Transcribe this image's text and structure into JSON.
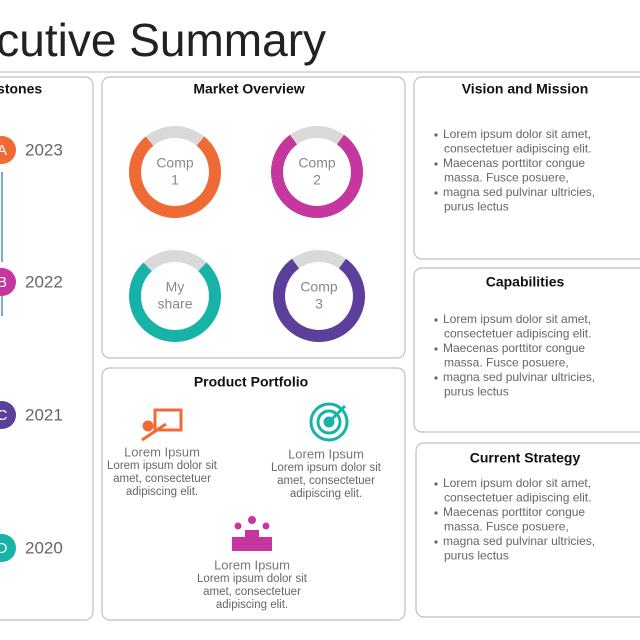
{
  "header": {
    "title": "Executive Summary"
  },
  "milestones": {
    "title": "Milestones",
    "items": [
      {
        "badge": "A",
        "year": "2023",
        "color": "#f06a35"
      },
      {
        "badge": "B",
        "year": "2022",
        "color": "#c5379f"
      },
      {
        "badge": "C",
        "year": "2021",
        "color": "#5b3f9b"
      },
      {
        "badge": "D",
        "year": "2020",
        "color": "#18b3a8"
      }
    ]
  },
  "market_overview": {
    "title": "Market Overview",
    "donuts": [
      {
        "label_lines": [
          "Comp",
          "1"
        ],
        "share": 78,
        "color": "#f06a35"
      },
      {
        "label_lines": [
          "Comp",
          "2"
        ],
        "share": 80,
        "color": "#c5379f"
      },
      {
        "label_lines": [
          "My",
          "share"
        ],
        "share": 76,
        "color": "#18b3a8"
      },
      {
        "label_lines": [
          "Comp",
          "3"
        ],
        "share": 80,
        "color": "#5b3f9b"
      }
    ]
  },
  "product_portfolio": {
    "title": "Product Portfolio",
    "items": [
      {
        "title": "Lorem Ipsum",
        "lines": [
          "Lorem ipsum dolor sit",
          "amet, consectetuer",
          "adipiscing elit."
        ]
      },
      {
        "title": "Lorem Ipsum",
        "lines": [
          "Lorem ipsum dolor sit",
          "amet, consectetuer",
          "adipiscing elit."
        ]
      },
      {
        "title": "Lorem Ipsum",
        "lines": [
          "Lorem ipsum dolor sit",
          "amet, consectetuer",
          "adipiscing elit."
        ]
      }
    ]
  },
  "panels": [
    {
      "title": "Vision and Mission",
      "bullets": [
        [
          "Lorem ipsum dolor sit amet,",
          "consectetuer adipiscing elit."
        ],
        [
          "Maecenas porttitor congue",
          "massa. Fusce posuere,"
        ],
        [
          "magna sed pulvinar ultricies,",
          "purus lectus"
        ]
      ]
    },
    {
      "title": "Capabilities",
      "bullets": [
        [
          "Lorem ipsum dolor sit amet,",
          "consectetuer adipiscing elit."
        ],
        [
          "Maecenas porttitor congue",
          "massa. Fusce posuere,"
        ],
        [
          "magna sed pulvinar ultricies,",
          "purus lectus"
        ]
      ]
    },
    {
      "title": "Current Strategy",
      "bullets": [
        [
          "Lorem ipsum dolor sit amet,",
          "consectetuer adipiscing elit."
        ],
        [
          "Maecenas porttitor congue",
          "massa. Fusce posuere,"
        ],
        [
          "magna sed pulvinar ultricies,",
          "purus lectus"
        ]
      ]
    }
  ]
}
